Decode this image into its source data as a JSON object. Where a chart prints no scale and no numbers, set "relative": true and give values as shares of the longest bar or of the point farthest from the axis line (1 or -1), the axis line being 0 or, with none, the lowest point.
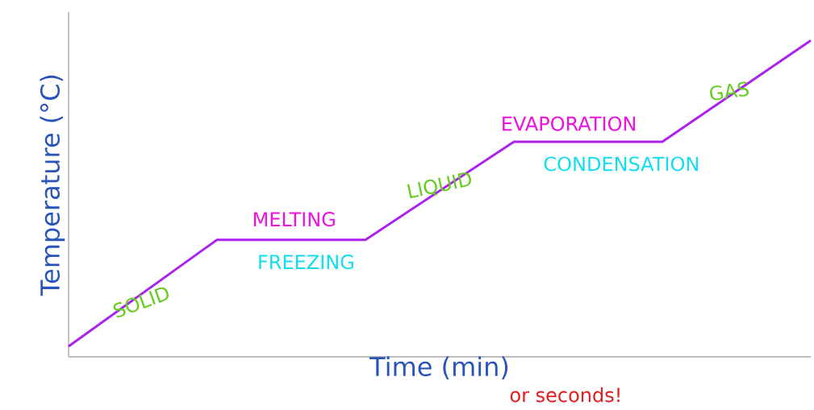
{
  "chart_data": {
    "type": "line",
    "relative": true,
    "xlabel": "Time (min)",
    "ylabel": "Temperature (°C)",
    "categories": [
      null,
      null,
      null,
      null,
      null,
      null
    ],
    "series": [
      {
        "color": "#aa22ee",
        "values": [
          0.033,
          0.37,
          0.37,
          0.68,
          0.68,
          1
        ]
      }
    ],
    "annotations": [
      "SOLID",
      "MELTING",
      "FREEZING",
      "LIQUID",
      "EVAPORATION",
      "CONDENSATION",
      "GAS",
      "or seconds!"
    ],
    "tick_labels": false,
    "marker": "none",
    "line_style": "solid"
  }
}
